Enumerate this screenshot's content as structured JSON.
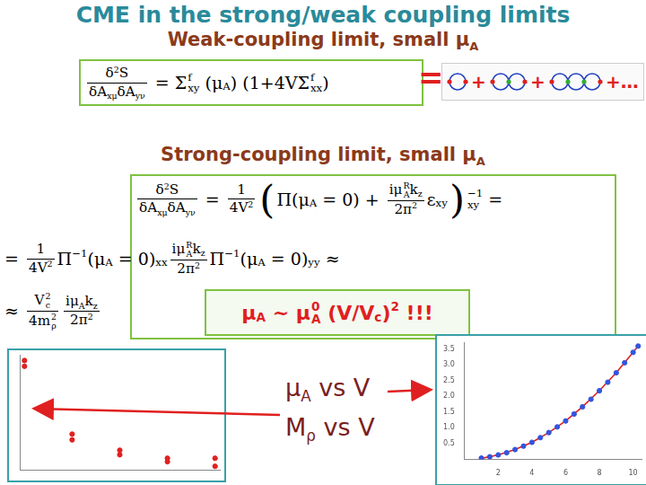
{
  "title": "CME in the strong/weak coupling limits",
  "weak": {
    "heading": [
      "Weak-coupling limit, small μ",
      {
        "sub": [
          "A"
        ]
      }
    ],
    "equation": [
      {
        "frac": [
          [
            "δ",
            {
              "sup": [
                "2"
              ]
            },
            "S"
          ],
          [
            "δA",
            {
              "sub": [
                "xμ"
              ]
            },
            "δA",
            {
              "sub": [
                "yν"
              ]
            }
          ]
        ]
      },
      " = Σ",
      {
        "subsup": [
          [
            "xy"
          ],
          [
            "f"
          ]
        ]
      },
      " (μ",
      {
        "sub": [
          "A"
        ]
      },
      ") (1+4VΣ",
      {
        "subsup": [
          [
            "xx"
          ],
          [
            "f"
          ]
        ]
      },
      ")"
    ],
    "equals": "=",
    "diagram": {
      "chains": [
        1,
        2,
        3
      ],
      "plus": [
        "+",
        "+",
        "+…"
      ]
    }
  },
  "strong": {
    "heading": [
      "Strong-coupling limit, small μ",
      {
        "sub": [
          "A"
        ]
      }
    ],
    "lines": [
      [
        {
          "frac": [
            [
              "δ",
              {
                "sup": [
                  "2"
                ]
              },
              "S"
            ],
            [
              "δA",
              {
                "sub": [
                  "xμ"
                ]
              },
              "δA",
              {
                "sub": [
                  "yν"
                ]
              }
            ]
          ]
        },
        " = ",
        {
          "frac": [
            [
              "1"
            ],
            [
              "4V",
              {
                "sup": [
                  "2"
                ]
              }
            ]
          ]
        },
        {
          "big": "("
        },
        "Π(μ",
        {
          "sub": [
            "A"
          ]
        },
        " = 0) + ",
        {
          "frac": [
            [
              "iμ",
              {
                "subsup": [
                  [
                    "A"
                  ],
                  [
                    "R"
                  ]
                ]
              },
              "k",
              {
                "sub": [
                  "z"
                ]
              }
            ],
            [
              "2π",
              {
                "sup": [
                  "2"
                ]
              }
            ]
          ]
        },
        "ε",
        {
          "sub": [
            "xy"
          ]
        },
        {
          "big": ")"
        },
        {
          "subsup": [
            [
              "xy"
            ],
            [
              "−1"
            ]
          ]
        },
        " ="
      ],
      [
        "= ",
        {
          "frac": [
            [
              "1"
            ],
            [
              "4V",
              {
                "sup": [
                  "2"
                ]
              }
            ]
          ]
        },
        "Π",
        {
          "sup": [
            "−1"
          ]
        },
        "(μ",
        {
          "sub": [
            "A"
          ]
        },
        " = 0)",
        {
          "sub": [
            "xx"
          ]
        },
        {
          "frac": [
            [
              "iμ",
              {
                "subsup": [
                  [
                    "A"
                  ],
                  [
                    "R"
                  ]
                ]
              },
              "k",
              {
                "sub": [
                  "z"
                ]
              }
            ],
            [
              "2π",
              {
                "sup": [
                  "2"
                ]
              }
            ]
          ]
        },
        "Π",
        {
          "sup": [
            "−1"
          ]
        },
        "(μ",
        {
          "sub": [
            "A"
          ]
        },
        " = 0)",
        {
          "sub": [
            "yy"
          ]
        },
        " ≈"
      ],
      [
        "≈ ",
        {
          "frac": [
            [
              "V",
              {
                "subsup": [
                  [
                    "c"
                  ],
                  [
                    "2"
                  ]
                ]
              }
            ],
            [
              "4m",
              {
                "subsup": [
                  [
                    "ρ"
                  ],
                  [
                    "2"
                  ]
                ]
              }
            ]
          ]
        },
        {
          "frac": [
            [
              "iμ",
              {
                "sub": [
                  "A"
                ]
              },
              "k",
              {
                "sub": [
                  "z"
                ]
              }
            ],
            [
              "2π",
              {
                "sup": [
                  "2"
                ]
              }
            ]
          ]
        }
      ]
    ],
    "result": [
      "μ",
      {
        "sub": [
          "A"
        ]
      },
      " ~ μ",
      {
        "subsup": [
          [
            "A"
          ],
          [
            "0"
          ]
        ]
      },
      " (V/V",
      {
        "sub": [
          "c"
        ]
      },
      ")",
      {
        "sup": [
          "2"
        ]
      },
      " !!!"
    ]
  },
  "labels": {
    "mu_vs_v": [
      "μ",
      {
        "sub": [
          "A"
        ]
      },
      " vs V"
    ],
    "m_vs_v": [
      "M",
      {
        "sub": [
          "ρ"
        ]
      },
      " vs V"
    ]
  },
  "chart_data": [
    {
      "type": "scatter",
      "x": [
        0,
        0,
        1,
        1,
        2,
        2,
        3,
        3,
        4,
        4
      ],
      "series": [
        {
          "color": "#e02020",
          "values": [
            0.95,
            0.9,
            0.31,
            0.26,
            0.17,
            0.13,
            0.1,
            0.07,
            0.1,
            0.03
          ]
        }
      ],
      "marker": "circle",
      "xlim": [
        -0.1,
        4.1
      ],
      "ylim": [
        0,
        1
      ],
      "tick_labels": false,
      "grid": false
    },
    {
      "type": "scatter",
      "series": [
        {
          "type": "scatter",
          "color": "#3355dd",
          "marker": "circle",
          "x": [
            1,
            1.5,
            2,
            2.5,
            3,
            3.5,
            4,
            4.5,
            5,
            5.5,
            6,
            6.5,
            7,
            7.5,
            8,
            8.5,
            9,
            9.5,
            10,
            10.3
          ],
          "values": [
            0.04,
            0.08,
            0.14,
            0.21,
            0.31,
            0.42,
            0.54,
            0.69,
            0.85,
            1.03,
            1.22,
            1.44,
            1.67,
            1.91,
            2.18,
            2.45,
            2.75,
            3.07,
            3.4,
            3.6
          ]
        },
        {
          "type": "line",
          "color": "#e02020",
          "x": [
            1,
            2,
            3,
            4,
            5,
            6,
            7,
            8,
            9,
            10,
            10.3
          ],
          "values": [
            0.03,
            0.14,
            0.31,
            0.54,
            0.85,
            1.22,
            1.67,
            2.18,
            2.75,
            3.4,
            3.6
          ]
        }
      ],
      "xlim": [
        0,
        10.5
      ],
      "xticks": [
        2,
        4,
        6,
        8,
        10
      ],
      "ylim": [
        0,
        3.7
      ],
      "yticks": [
        0.5,
        {
          "value": 1,
          "label": "1.0"
        },
        1.5,
        {
          "value": 2,
          "label": "2.0"
        },
        2.5,
        {
          "value": 3,
          "label": "3.0"
        },
        3.5
      ],
      "grid": false
    }
  ]
}
